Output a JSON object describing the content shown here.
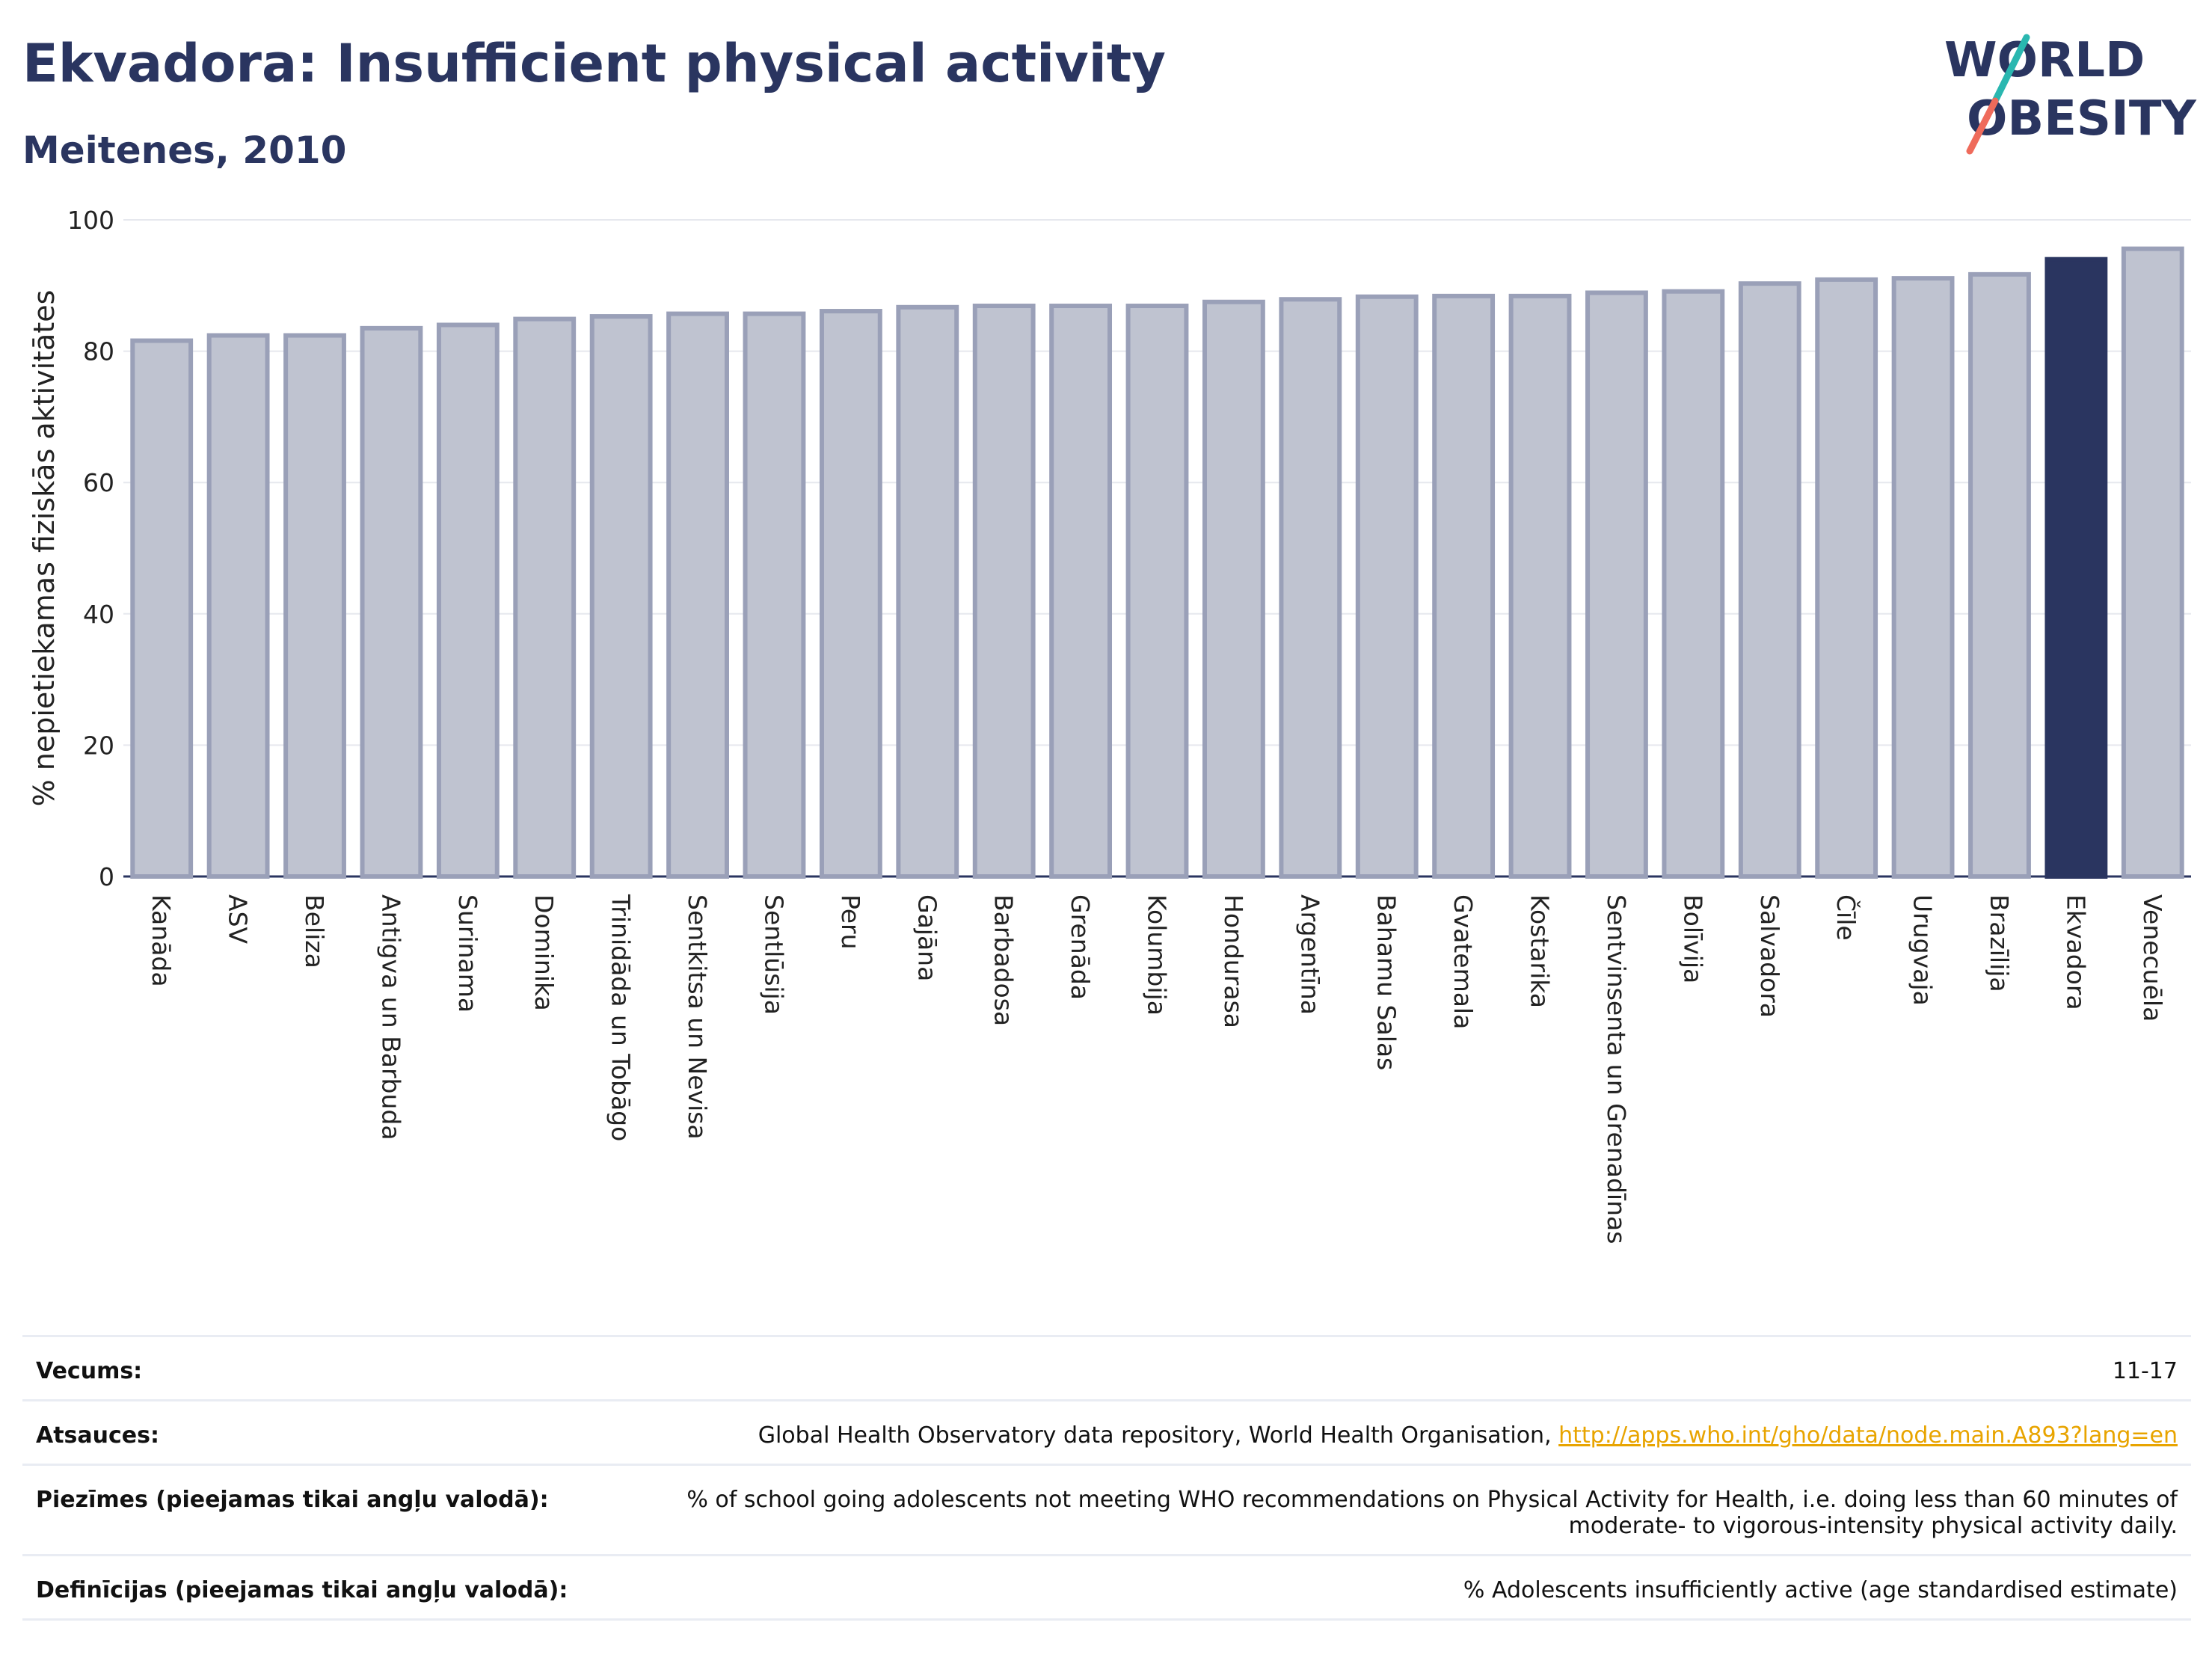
{
  "header": {
    "title": "Ekvadora: Insufficient physical activity",
    "subtitle": "Meitenes, 2010"
  },
  "logo": {
    "line1": "WORLD",
    "line2": "OBESITY"
  },
  "colors": {
    "bar": "#bfc3d0",
    "bar_stroke": "#9aa0b8",
    "highlight": "#2a3560",
    "accent_teal": "#2ab7b0",
    "accent_red": "#ef6b5b"
  },
  "chart_data": {
    "type": "bar",
    "ylabel": "% nepietiekamas fiziskās aktivitātes",
    "ylim": [
      0,
      100
    ],
    "yticks": [
      0,
      20,
      40,
      60,
      80,
      100
    ],
    "grid": true,
    "highlight": "Ekvadora",
    "categories": [
      "Kanāda",
      "ASV",
      "Beliza",
      "Antigva un Barbuda",
      "Surinama",
      "Dominika",
      "Trinidāda un Tobāgo",
      "Sentkitsa un Nevisa",
      "Sentlūsija",
      "Peru",
      "Gajāna",
      "Barbadosa",
      "Grenāda",
      "Kolumbija",
      "Hondurasa",
      "Argentīna",
      "Bahamu Salas",
      "Gvatemala",
      "Kostarika",
      "Sentvinsenta un Grenadīnas",
      "Bolīvija",
      "Salvadora",
      "Čīle",
      "Urugvaja",
      "Brazīlija",
      "Ekvadora",
      "Venecuēla"
    ],
    "values": [
      81.6,
      82.4,
      82.4,
      83.5,
      84.0,
      84.9,
      85.3,
      85.7,
      85.7,
      86.1,
      86.7,
      86.9,
      86.9,
      86.9,
      87.5,
      87.9,
      88.3,
      88.4,
      88.4,
      88.9,
      89.1,
      90.3,
      90.9,
      91.1,
      91.7,
      94.0,
      95.6
    ]
  },
  "notes": {
    "age_label": "Vecums:",
    "age_value": "11-17",
    "sources_label": "Atsauces:",
    "sources_text": "Global Health Observatory data repository, World Health Organisation, ",
    "sources_link": "http://apps.who.int/gho/data/node.main.A893?lang=en",
    "notes_label": "Piezīmes (pieejamas tikai angļu valodā):",
    "notes_value": "% of school going adolescents not meeting WHO recommendations on Physical Activity for Health, i.e. doing less than 60 minutes of moderate- to vigorous-intensity physical activity daily.",
    "definitions_label": "Definīcijas (pieejamas tikai angļu valodā):",
    "definitions_value": "% Adolescents insufficiently active (age standardised estimate)"
  }
}
